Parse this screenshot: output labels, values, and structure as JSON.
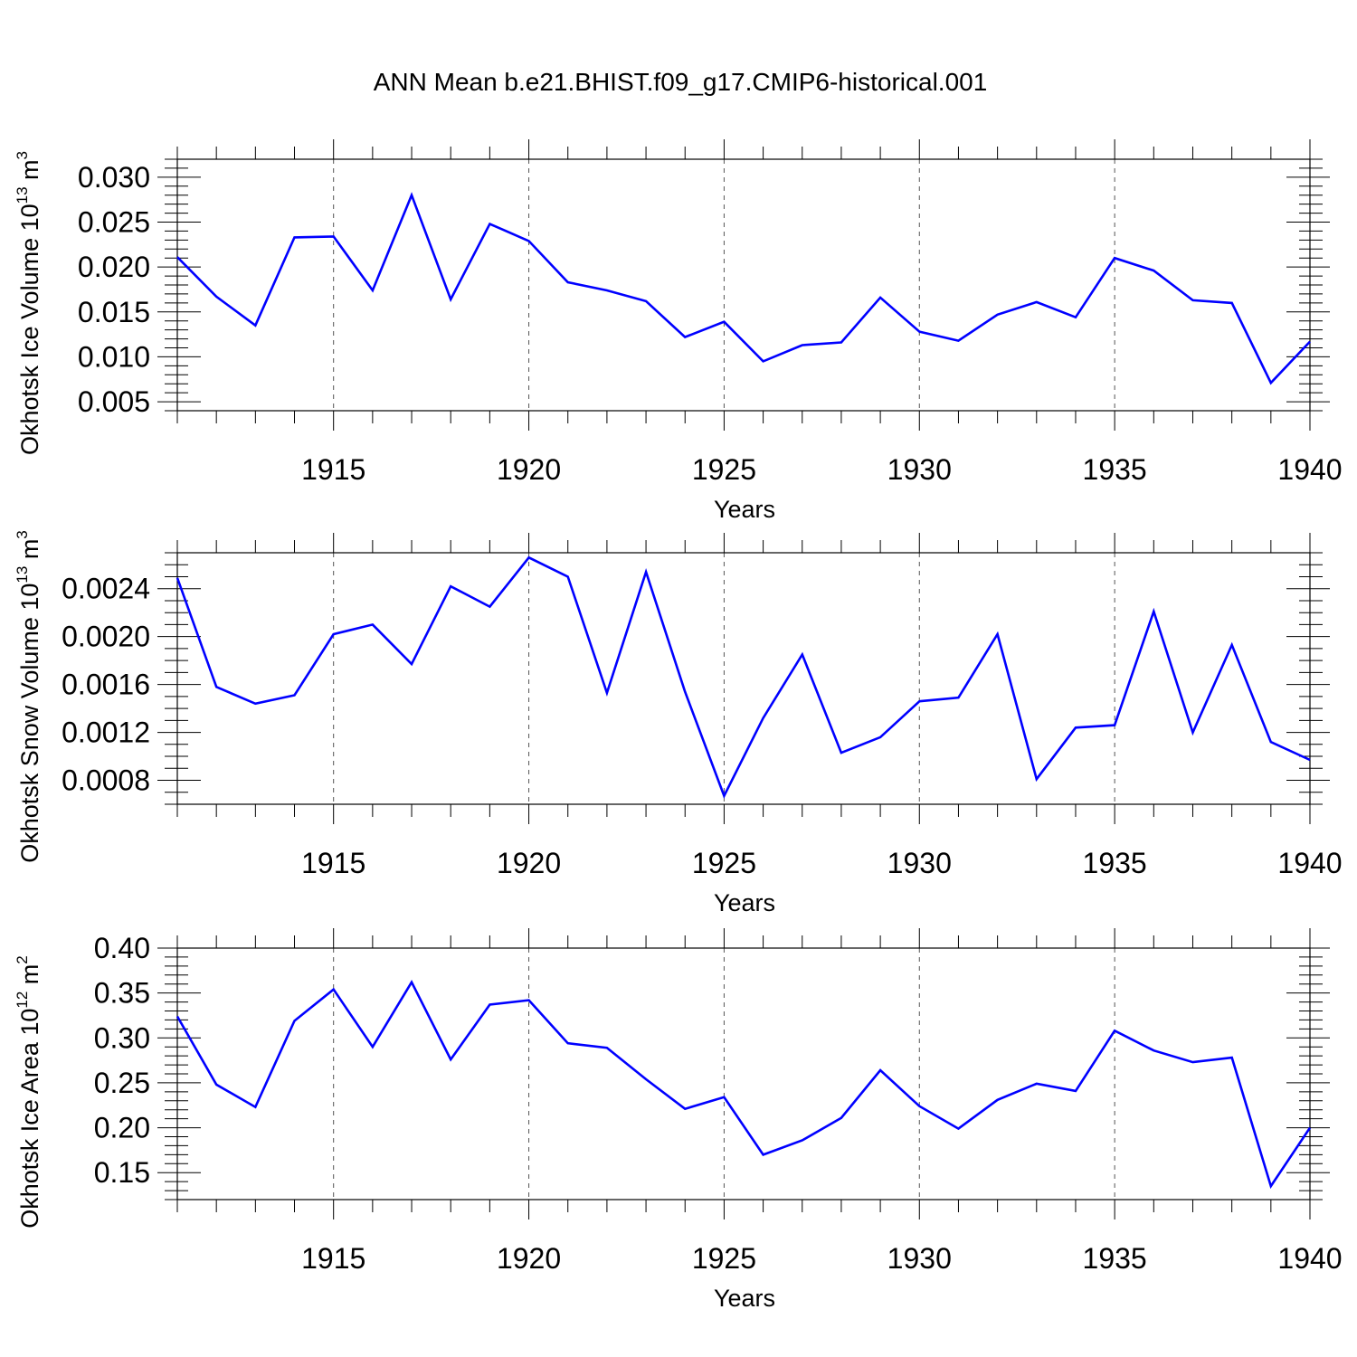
{
  "title": "ANN Mean b.e21.BHIST.f09_g17.CMIP6-historical.001",
  "colors": {
    "line": "#0000ff",
    "axis": "#000000",
    "grid": "#555555"
  },
  "chart_data": [
    {
      "type": "line",
      "xlabel": "Years",
      "ylabel": {
        "text": "Okhotsk Ice Volume 10",
        "exp": "13",
        "unit_text": " m",
        "unit_exp": "3"
      },
      "xlim": [
        1911,
        1940
      ],
      "ylim": [
        0.004,
        0.032
      ],
      "x_ticks": [
        1915,
        1920,
        1925,
        1930,
        1935,
        1940
      ],
      "x_tick_labels": [
        "1915",
        "1920",
        "1925",
        "1930",
        "1935",
        "1940"
      ],
      "y_ticks": [
        0.005,
        0.01,
        0.015,
        0.02,
        0.025,
        0.03
      ],
      "y_tick_labels": [
        "0.005",
        "0.010",
        "0.015",
        "0.020",
        "0.025",
        "0.030"
      ],
      "y_minor_step": 0.001,
      "grid": "dashed vertical at major x ticks",
      "x": [
        1911,
        1912,
        1913,
        1914,
        1915,
        1916,
        1917,
        1918,
        1919,
        1920,
        1921,
        1922,
        1923,
        1924,
        1925,
        1926,
        1927,
        1928,
        1929,
        1930,
        1931,
        1932,
        1933,
        1934,
        1935,
        1936,
        1937,
        1938,
        1939,
        1940
      ],
      "y": [
        0.0211,
        0.0167,
        0.0135,
        0.0233,
        0.0234,
        0.0174,
        0.028,
        0.0164,
        0.0248,
        0.0229,
        0.0183,
        0.0174,
        0.0162,
        0.0122,
        0.0139,
        0.0095,
        0.0113,
        0.0116,
        0.0166,
        0.0128,
        0.0118,
        0.0147,
        0.0161,
        0.0144,
        0.021,
        0.0196,
        0.0163,
        0.016,
        0.0071,
        0.0117
      ]
    },
    {
      "type": "line",
      "xlabel": "Years",
      "ylabel": {
        "text": "Okhotsk Snow Volume 10",
        "exp": "13",
        "unit_text": " m",
        "unit_exp": "3"
      },
      "xlim": [
        1911,
        1940
      ],
      "ylim": [
        0.0006,
        0.0027
      ],
      "x_ticks": [
        1915,
        1920,
        1925,
        1930,
        1935,
        1940
      ],
      "x_tick_labels": [
        "1915",
        "1920",
        "1925",
        "1930",
        "1935",
        "1940"
      ],
      "y_ticks": [
        0.0008,
        0.0012,
        0.0016,
        0.002,
        0.0024
      ],
      "y_tick_labels": [
        "0.0008",
        "0.0012",
        "0.0016",
        "0.0020",
        "0.0024"
      ],
      "y_minor_step": 0.0001,
      "grid": "dashed vertical at major x ticks",
      "x": [
        1911,
        1912,
        1913,
        1914,
        1915,
        1916,
        1917,
        1918,
        1919,
        1920,
        1921,
        1922,
        1923,
        1924,
        1925,
        1926,
        1927,
        1928,
        1929,
        1930,
        1931,
        1932,
        1933,
        1934,
        1935,
        1936,
        1937,
        1938,
        1939,
        1940
      ],
      "y": [
        0.00249,
        0.00158,
        0.00144,
        0.00151,
        0.00202,
        0.0021,
        0.00177,
        0.00242,
        0.00225,
        0.00266,
        0.0025,
        0.00153,
        0.00254,
        0.00154,
        0.00067,
        0.00132,
        0.00185,
        0.00103,
        0.00116,
        0.00146,
        0.00149,
        0.00202,
        0.00081,
        0.00124,
        0.00126,
        0.00221,
        0.0012,
        0.00193,
        0.00112,
        0.00097
      ]
    },
    {
      "type": "line",
      "xlabel": "Years",
      "ylabel": {
        "text": "Okhotsk Ice Area 10",
        "exp": "12",
        "unit_text": " m",
        "unit_exp": "2"
      },
      "xlim": [
        1911,
        1940
      ],
      "ylim": [
        0.12,
        0.4
      ],
      "x_ticks": [
        1915,
        1920,
        1925,
        1930,
        1935,
        1940
      ],
      "x_tick_labels": [
        "1915",
        "1920",
        "1925",
        "1930",
        "1935",
        "1940"
      ],
      "y_ticks": [
        0.15,
        0.2,
        0.25,
        0.3,
        0.35,
        0.4
      ],
      "y_tick_labels": [
        "0.15",
        "0.20",
        "0.25",
        "0.30",
        "0.35",
        "0.40"
      ],
      "y_minor_step": 0.01,
      "grid": "dashed vertical at major x ticks",
      "x": [
        1911,
        1912,
        1913,
        1914,
        1915,
        1916,
        1917,
        1918,
        1919,
        1920,
        1921,
        1922,
        1923,
        1924,
        1925,
        1926,
        1927,
        1928,
        1929,
        1930,
        1931,
        1932,
        1933,
        1934,
        1935,
        1936,
        1937,
        1938,
        1939,
        1940
      ],
      "y": [
        0.324,
        0.248,
        0.223,
        0.319,
        0.354,
        0.29,
        0.362,
        0.276,
        0.337,
        0.342,
        0.294,
        0.289,
        0.254,
        0.221,
        0.234,
        0.17,
        0.186,
        0.211,
        0.264,
        0.224,
        0.199,
        0.231,
        0.249,
        0.241,
        0.308,
        0.286,
        0.273,
        0.278,
        0.135,
        0.2
      ]
    }
  ]
}
